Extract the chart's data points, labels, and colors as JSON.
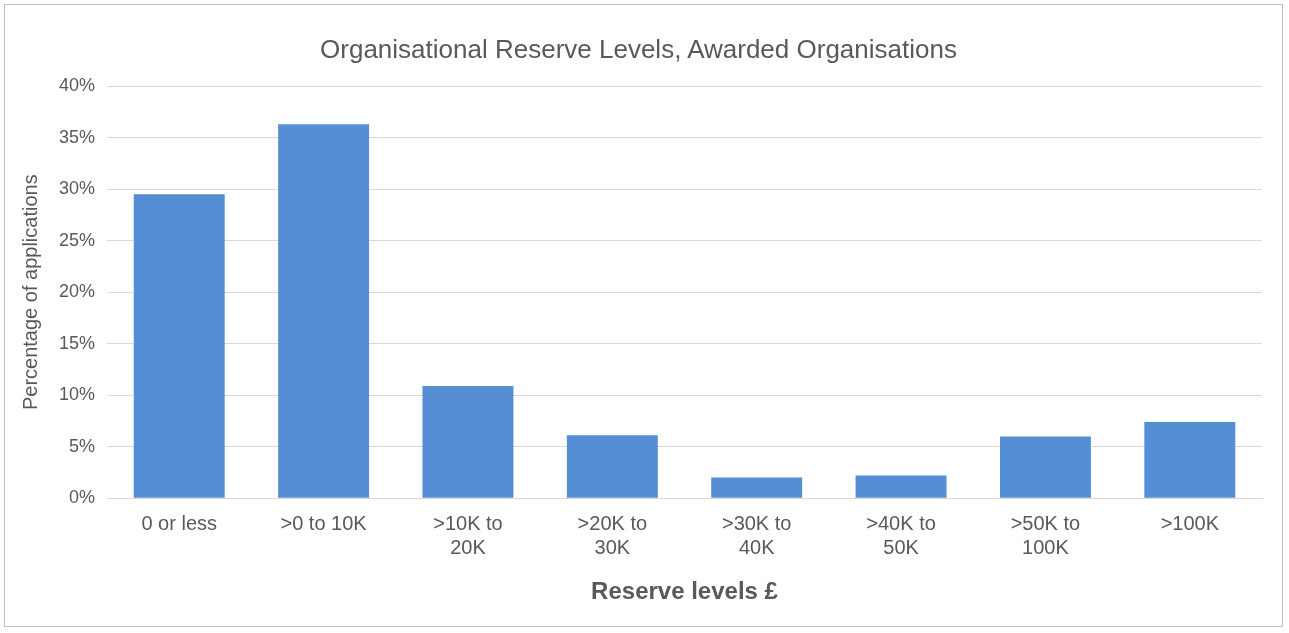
{
  "chart_data": {
    "type": "bar",
    "title": "Organisational Reserve Levels, Awarded Organisations",
    "xlabel": "Reserve levels £",
    "ylabel": "Percentage of applications",
    "categories": [
      "0 or less",
      ">0 to 10K",
      ">10K to 20K",
      ">20K to 30K",
      ">30K to 40K",
      ">40K to 50K",
      ">50K to 100K",
      ">100K"
    ],
    "values": [
      29.5,
      36.3,
      10.9,
      6.1,
      2.0,
      2.2,
      6.0,
      7.4
    ],
    "color": "#558ed5",
    "ylim": [
      0,
      40
    ],
    "yticks": [
      {
        "value": 0,
        "label": "0%"
      },
      {
        "value": 5,
        "label": "5%"
      },
      {
        "value": 10,
        "label": "10%"
      },
      {
        "value": 15,
        "label": "15%"
      },
      {
        "value": 20,
        "label": "20%"
      },
      {
        "value": 25,
        "label": "25%"
      },
      {
        "value": 30,
        "label": "30%"
      },
      {
        "value": 35,
        "label": "35%"
      },
      {
        "value": 40,
        "label": "40%"
      }
    ],
    "grid": "y",
    "legend": false
  }
}
